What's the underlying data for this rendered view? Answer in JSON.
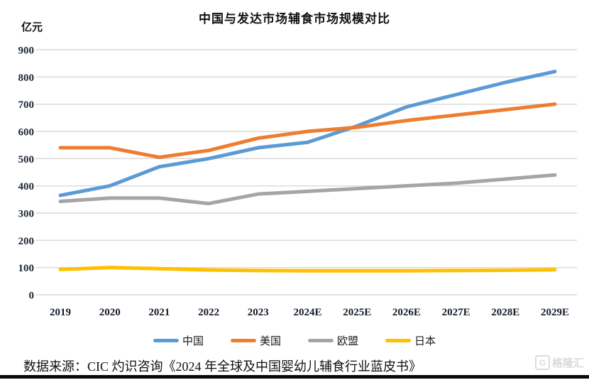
{
  "chart": {
    "title": "中国与发达市场辅食市场规模对比",
    "unit_label": "亿元",
    "source": "数据来源：CIC 灼识咨询《2024 年全球及中国婴幼儿辅食行业蓝皮书》",
    "watermark": "格隆汇",
    "watermark_initial": "G"
  },
  "colors": {
    "gridline": "#D9D9D9",
    "tick_text": "#1d2636",
    "china_blue": "#5B9BD5",
    "usa_orange": "#ED7D31",
    "eu_gray": "#A5A5A5",
    "japan_yellow": "#FFC000"
  },
  "chart_data": {
    "type": "line",
    "title": "中国与发达市场辅食市场规模对比",
    "xlabel": "",
    "ylabel": "亿元",
    "ylim": [
      0,
      900
    ],
    "ytick_step": 100,
    "yticks": [
      0,
      100,
      200,
      300,
      400,
      500,
      600,
      700,
      800,
      900
    ],
    "grid": true,
    "legend_position": "bottom",
    "categories": [
      "2019",
      "2020",
      "2021",
      "2022",
      "2023",
      "2024E",
      "2025E",
      "2026E",
      "2027E",
      "2028E",
      "2029E"
    ],
    "series": [
      {
        "name": "中国",
        "color": "#5B9BD5",
        "values": [
          365,
          400,
          470,
          500,
          540,
          560,
          620,
          690,
          735,
          780,
          820
        ]
      },
      {
        "name": "美国",
        "color": "#ED7D31",
        "values": [
          540,
          540,
          505,
          530,
          575,
          600,
          615,
          640,
          660,
          680,
          700
        ]
      },
      {
        "name": "欧盟",
        "color": "#A5A5A5",
        "values": [
          343,
          355,
          355,
          335,
          370,
          380,
          390,
          400,
          410,
          425,
          440
        ]
      },
      {
        "name": "日本",
        "color": "#FFC000",
        "values": [
          93,
          100,
          96,
          91,
          89,
          88,
          88,
          88,
          89,
          90,
          92
        ]
      }
    ]
  }
}
